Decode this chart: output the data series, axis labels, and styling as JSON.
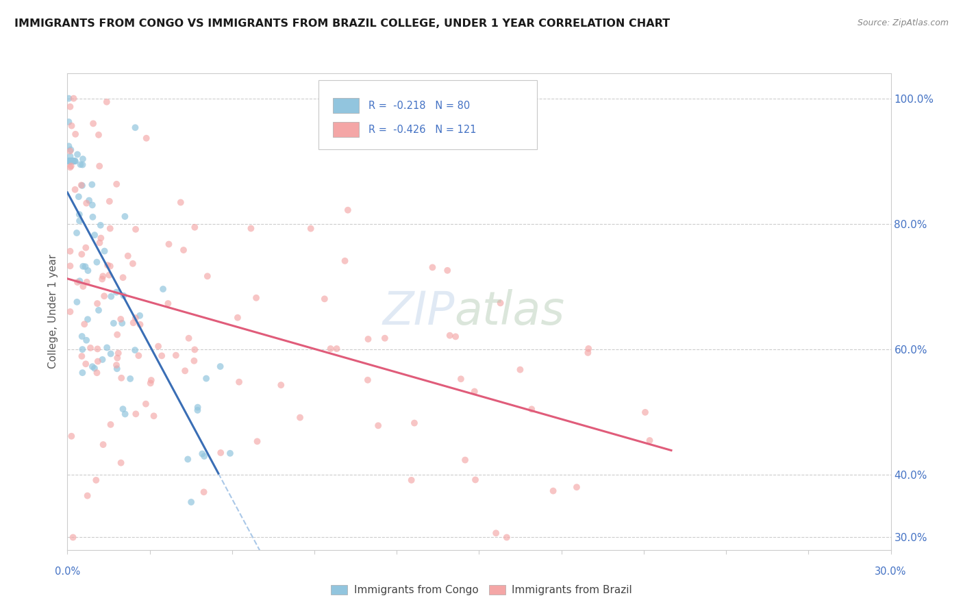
{
  "title": "IMMIGRANTS FROM CONGO VS IMMIGRANTS FROM BRAZIL COLLEGE, UNDER 1 YEAR CORRELATION CHART",
  "source": "Source: ZipAtlas.com",
  "ylabel": "College, Under 1 year",
  "xlim": [
    0.0,
    30.0
  ],
  "ylim": [
    28.0,
    104.0
  ],
  "yticks": [
    30.0,
    40.0,
    60.0,
    80.0,
    100.0
  ],
  "congo_color": "#92c5de",
  "brazil_color": "#f4a6a6",
  "congo_line_color": "#3a6eb5",
  "brazil_line_color": "#e05c7a",
  "dashed_color": "#aac8e8",
  "congo_R": -0.218,
  "congo_N": 80,
  "brazil_R": -0.426,
  "brazil_N": 121,
  "legend_label_1": "Immigrants from Congo",
  "legend_label_2": "Immigrants from Brazil",
  "watermark": "ZIPatlas",
  "background_color": "#ffffff",
  "grid_color": "#cccccc",
  "axis_label_color": "#4472c4",
  "title_color": "#1a1a1a"
}
